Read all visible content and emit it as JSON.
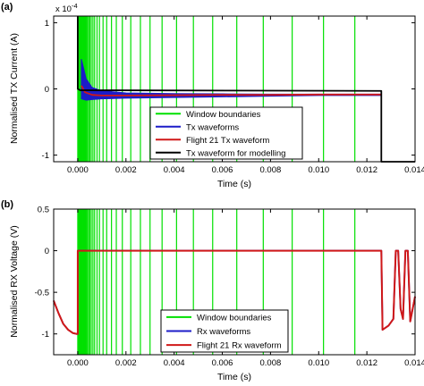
{
  "chart_data": [
    {
      "panel_label": "(a)",
      "type": "line",
      "title": "",
      "xlabel": "Time (s)",
      "ylabel": "Normalised TX Current (A)",
      "xlim": [
        -0.001,
        0.014
      ],
      "ylim": [
        -1.1,
        1.1
      ],
      "y_exponent_label": "x 10",
      "y_exponent_power": "-4",
      "xticks": [
        0.0,
        0.002,
        0.004,
        0.006,
        0.008,
        0.01,
        0.012,
        0.014
      ],
      "xtick_labels": [
        "0.000",
        "0.002",
        "0.004",
        "0.006",
        "0.008",
        "0.010",
        "0.012",
        "0.014"
      ],
      "yticks": [
        -1,
        0,
        1
      ],
      "ytick_labels": [
        "-1",
        "0",
        "1"
      ],
      "grid": false,
      "legend_position": "bottom-center",
      "window_boundaries": [
        0.0,
        2e-05,
        4e-05,
        6e-05,
        8e-05,
        0.0001,
        0.00012,
        0.00014,
        0.00016,
        0.00018,
        0.0002,
        0.00023,
        0.00026,
        0.00029,
        0.00032,
        0.00036,
        0.0004,
        0.00045,
        0.0005,
        0.00056,
        0.00063,
        0.0007,
        0.0008,
        0.0009,
        0.00105,
        0.0012,
        0.0014,
        0.0016,
        0.00185,
        0.0022,
        0.0026,
        0.003,
        0.0035,
        0.0041,
        0.0048,
        0.0056,
        0.0066,
        0.0077,
        0.0089,
        0.0102,
        0.0115
      ],
      "series": [
        {
          "name": "Window boundaries",
          "color": "#00e000"
        },
        {
          "name": "Tx waveforms",
          "color": "#1c1cc8",
          "x": [
            0.00015,
            0.00035,
            0.0006,
            0.001,
            0.002,
            0.004,
            0.006,
            0.008,
            0.01,
            0.0126
          ],
          "y_upper": [
            0.45,
            0.15,
            0.02,
            -0.03,
            -0.06,
            -0.07,
            -0.075,
            -0.08,
            -0.08,
            -0.08
          ],
          "y_lower": [
            -0.15,
            -0.17,
            -0.16,
            -0.15,
            -0.14,
            -0.13,
            -0.12,
            -0.11,
            -0.1,
            -0.1
          ]
        },
        {
          "name": "Flight 21 Tx waveform",
          "color": "#d01818",
          "x": [
            0.00015,
            0.0003,
            0.0006,
            0.001,
            0.002,
            0.004,
            0.006,
            0.008,
            0.01,
            0.0126
          ],
          "y": [
            0.05,
            -0.05,
            -0.09,
            -0.1,
            -0.1,
            -0.095,
            -0.09,
            -0.09,
            -0.085,
            -0.085
          ]
        },
        {
          "name": "Tx waveform for modelling",
          "color": "#000000",
          "x": [
            0.0,
            0.0,
            0.0,
            0.0001,
            0.0126,
            0.0126,
            0.0126,
            0.014
          ],
          "y": [
            1.1,
            0.0,
            0.0,
            -0.02,
            -0.03,
            -1.1,
            -1.1,
            -1.1
          ]
        }
      ]
    },
    {
      "panel_label": "(b)",
      "type": "line",
      "title": "",
      "xlabel": "Time (s)",
      "ylabel": "Normalised RX Voltage (V)",
      "xlim": [
        -0.001,
        0.014
      ],
      "ylim": [
        -1.25,
        0.5
      ],
      "xticks": [
        0.0,
        0.002,
        0.004,
        0.006,
        0.008,
        0.01,
        0.012,
        0.014
      ],
      "xtick_labels": [
        "0.000",
        "0.002",
        "0.004",
        "0.006",
        "0.008",
        "0.010",
        "0.012",
        "0.014"
      ],
      "yticks": [
        -1,
        -0.5,
        0,
        0.5
      ],
      "ytick_labels": [
        "-1",
        "-0.5",
        "0",
        "0.5"
      ],
      "grid": false,
      "legend_position": "bottom-center",
      "window_boundaries": [
        0.0,
        2e-05,
        4e-05,
        6e-05,
        8e-05,
        0.0001,
        0.00012,
        0.00014,
        0.00016,
        0.00018,
        0.0002,
        0.00023,
        0.00026,
        0.00029,
        0.00032,
        0.00036,
        0.0004,
        0.00045,
        0.0005,
        0.00056,
        0.00063,
        0.0007,
        0.0008,
        0.0009,
        0.00105,
        0.0012,
        0.0014,
        0.0016,
        0.00185,
        0.0022,
        0.0026,
        0.003,
        0.0035,
        0.0041,
        0.0048,
        0.0056,
        0.0066,
        0.0077,
        0.0089,
        0.0102,
        0.0115
      ],
      "series": [
        {
          "name": "Window boundaries",
          "color": "#00e000"
        },
        {
          "name": "Rx waveforms",
          "color": "#1c1cc8",
          "x": [
            -0.001,
            -0.0008,
            -0.0006,
            -0.0004,
            -0.0002,
            -5e-05,
            0.0,
            0.0,
            0.0126,
            0.01265,
            0.0129,
            0.0131,
            0.0132,
            0.0133,
            0.0134,
            0.0135,
            0.0136,
            0.0137,
            0.0138,
            0.0139,
            0.014
          ],
          "y": [
            -0.6,
            -0.75,
            -0.88,
            -0.95,
            -0.99,
            -1.0,
            -1.0,
            0.0,
            0.0,
            -0.95,
            -0.9,
            -0.82,
            0.0,
            0.0,
            -0.7,
            -0.82,
            0.0,
            0.0,
            -0.85,
            -0.7,
            -0.55
          ]
        },
        {
          "name": "Flight 21 Rx waveform",
          "color": "#d01818",
          "x": [
            -0.001,
            -0.0008,
            -0.0006,
            -0.0004,
            -0.0002,
            -5e-05,
            0.0,
            0.0,
            0.0126,
            0.01265,
            0.0129,
            0.0131,
            0.0132,
            0.0133,
            0.0134,
            0.0135,
            0.0136,
            0.0137,
            0.0138,
            0.0139,
            0.014
          ],
          "y": [
            -0.6,
            -0.75,
            -0.88,
            -0.95,
            -0.99,
            -1.0,
            -1.0,
            0.0,
            0.0,
            -0.95,
            -0.9,
            -0.82,
            0.0,
            0.0,
            -0.7,
            -0.82,
            0.0,
            0.0,
            -0.85,
            -0.7,
            -0.55
          ]
        }
      ]
    }
  ]
}
